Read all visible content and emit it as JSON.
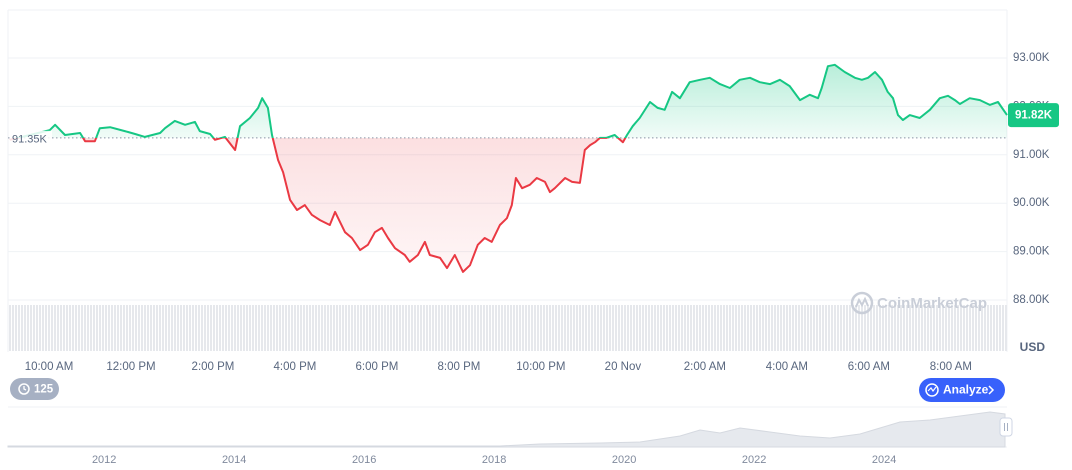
{
  "chart_data": {
    "type": "line",
    "x": [
      9.05,
      10.02,
      10.15,
      10.39,
      10.76,
      10.88,
      11.12,
      11.24,
      11.49,
      11.85,
      12.1,
      12.34,
      12.71,
      12.83,
      13.07,
      13.32,
      13.56,
      13.68,
      13.93,
      14.05,
      14.29,
      14.54,
      14.66,
      14.9,
      15.1,
      15.2,
      15.34,
      15.44,
      15.59,
      15.71,
      15.88,
      16.05,
      16.24,
      16.41,
      16.61,
      16.85,
      16.98,
      17.22,
      17.39,
      17.59,
      17.78,
      17.95,
      18.12,
      18.27,
      18.44,
      18.68,
      18.8,
      19.0,
      19.17,
      19.29,
      19.54,
      19.71,
      19.9,
      20.1,
      20.27,
      20.46,
      20.63,
      20.8,
      21.0,
      21.17,
      21.29,
      21.39,
      21.54,
      21.73,
      21.9,
      22.1,
      22.22,
      22.34,
      22.59,
      22.76,
      22.95,
      23.07,
      23.2,
      23.32,
      23.44,
      23.59,
      23.8,
      24.0,
      24.1,
      24.24,
      24.41,
      24.66,
      24.85,
      25.02,
      25.2,
      25.39,
      25.63,
      25.88,
      26.12,
      26.37,
      26.61,
      26.85,
      27.1,
      27.34,
      27.59,
      27.83,
      28.07,
      28.32,
      28.56,
      28.76,
      28.85,
      29.0,
      29.17,
      29.41,
      29.66,
      29.83,
      29.98,
      30.15,
      30.32,
      30.46,
      30.59,
      30.71,
      30.83,
      31.0,
      31.24,
      31.49,
      31.73,
      31.93,
      32.1,
      32.22,
      32.46,
      32.71,
      32.95,
      33.15,
      33.37
    ],
    "values": [
      91.31,
      91.51,
      91.62,
      91.41,
      91.45,
      91.28,
      91.28,
      91.55,
      91.57,
      91.49,
      91.43,
      91.37,
      91.45,
      91.55,
      91.7,
      91.62,
      91.68,
      91.49,
      91.43,
      91.31,
      91.37,
      91.1,
      91.59,
      91.76,
      91.97,
      92.17,
      91.97,
      91.41,
      90.89,
      90.64,
      90.07,
      89.86,
      89.96,
      89.76,
      89.65,
      89.55,
      89.82,
      89.4,
      89.28,
      89.03,
      89.14,
      89.4,
      89.49,
      89.28,
      89.07,
      88.93,
      88.79,
      88.93,
      89.2,
      88.93,
      88.87,
      88.66,
      88.93,
      88.58,
      88.72,
      89.14,
      89.28,
      89.2,
      89.55,
      89.69,
      89.96,
      90.52,
      90.31,
      90.38,
      90.52,
      90.44,
      90.23,
      90.31,
      90.52,
      90.44,
      90.42,
      91.1,
      91.2,
      91.26,
      91.35,
      91.35,
      91.41,
      91.26,
      91.41,
      91.59,
      91.76,
      92.09,
      91.97,
      91.93,
      92.3,
      92.17,
      92.5,
      92.55,
      92.59,
      92.46,
      92.38,
      92.55,
      92.59,
      92.5,
      92.46,
      92.55,
      92.42,
      92.13,
      92.24,
      92.17,
      92.38,
      92.83,
      92.86,
      92.71,
      92.59,
      92.55,
      92.59,
      92.71,
      92.55,
      92.3,
      92.17,
      91.82,
      91.72,
      91.82,
      91.76,
      91.93,
      92.17,
      92.22,
      92.13,
      92.05,
      92.17,
      92.13,
      92.03,
      92.09,
      91.82
    ],
    "xlim": [
      9,
      33.37
    ],
    "ylim": [
      88,
      94
    ],
    "xticks": [
      {
        "value": 10,
        "label": "10:00 AM"
      },
      {
        "value": 12,
        "label": "12:00 PM"
      },
      {
        "value": 14,
        "label": "2:00 PM"
      },
      {
        "value": 16,
        "label": "4:00 PM"
      },
      {
        "value": 18,
        "label": "6:00 PM"
      },
      {
        "value": 20,
        "label": "8:00 PM"
      },
      {
        "value": 22,
        "label": "10:00 PM"
      },
      {
        "value": 24,
        "label": "20 Nov"
      },
      {
        "value": 26,
        "label": "2:00 AM"
      },
      {
        "value": 28,
        "label": "4:00 AM"
      },
      {
        "value": 30,
        "label": "6:00 AM"
      },
      {
        "value": 32,
        "label": "8:00 AM"
      }
    ],
    "yticks": [
      {
        "value": 88,
        "label": "88.00K"
      },
      {
        "value": 89,
        "label": "89.00K"
      },
      {
        "value": 90,
        "label": "90.00K"
      },
      {
        "value": 91,
        "label": "91.00K"
      },
      {
        "value": 92,
        "label": "92.00K"
      },
      {
        "value": 93,
        "label": "93.00K"
      }
    ],
    "y_unit": "USD",
    "baseline": {
      "value": 91.35,
      "label": "91.35K"
    },
    "current": {
      "value": 91.82,
      "label": "91.82K"
    },
    "color_up": "#16c784",
    "color_down": "#ea3943",
    "grid": true,
    "watermark": "CoinMarketCap",
    "navigator": {
      "xlim": [
        2010.52,
        2025.89
      ],
      "xticks": [
        2012,
        2014,
        2016,
        2018,
        2020,
        2022,
        2024
      ]
    }
  },
  "controls": {
    "history_count": 125,
    "analyze_button": "Analyze"
  }
}
